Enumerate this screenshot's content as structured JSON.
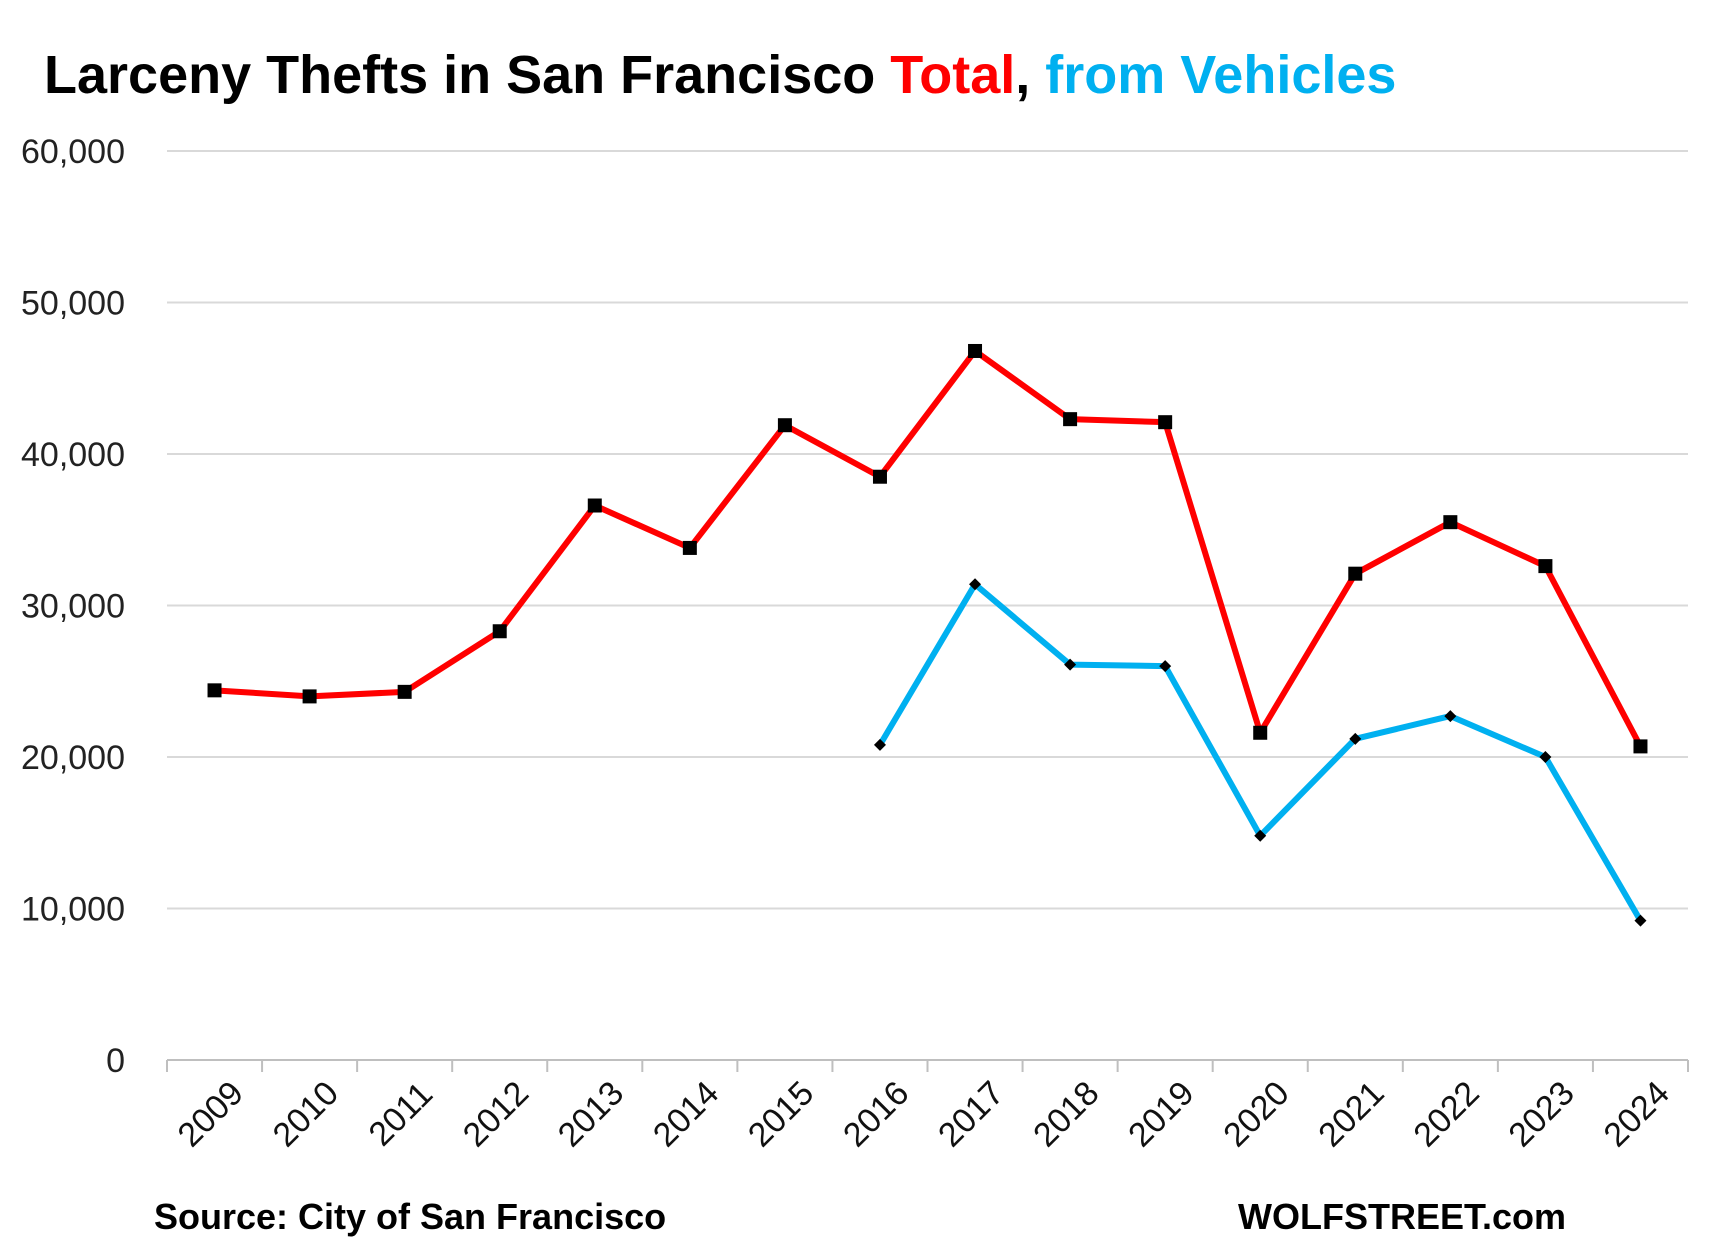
{
  "title": {
    "main": "Larceny Thefts in San Francisco ",
    "total": "Total",
    "sep": ", ",
    "vehicles": "from Vehicles"
  },
  "footer": {
    "source": "Source: City of San Francisco",
    "brand": "WOLFSTREET.com"
  },
  "colors": {
    "total": "#ff0000",
    "vehicles": "#00b0f0",
    "grid": "#d9d9d9",
    "marker": "#000000"
  },
  "chart_data": {
    "type": "line",
    "title": "Larceny Thefts in San Francisco Total, from Vehicles",
    "x": [
      "2009",
      "2010",
      "2011",
      "2012",
      "2013",
      "2014",
      "2015",
      "2016",
      "2017",
      "2018",
      "2019",
      "2020",
      "2021",
      "2022",
      "2023",
      "2024"
    ],
    "ylim": [
      0,
      60000
    ],
    "yticks": [
      0,
      10000,
      20000,
      30000,
      40000,
      50000,
      60000
    ],
    "ytick_labels": [
      "0",
      "10,000",
      "20,000",
      "30,000",
      "40,000",
      "50,000",
      "60,000"
    ],
    "grid": true,
    "series": [
      {
        "name": "Total",
        "color": "#ff0000",
        "marker": "square",
        "values": [
          24400,
          24000,
          24300,
          28300,
          36600,
          33800,
          41900,
          38500,
          46800,
          42300,
          42100,
          21600,
          32100,
          35500,
          32600,
          20700
        ]
      },
      {
        "name": "from Vehicles",
        "color": "#00b0f0",
        "marker": "diamond",
        "values": [
          null,
          null,
          null,
          null,
          null,
          null,
          null,
          20800,
          31400,
          26100,
          26000,
          14800,
          21200,
          22700,
          20000,
          9200
        ]
      }
    ]
  }
}
